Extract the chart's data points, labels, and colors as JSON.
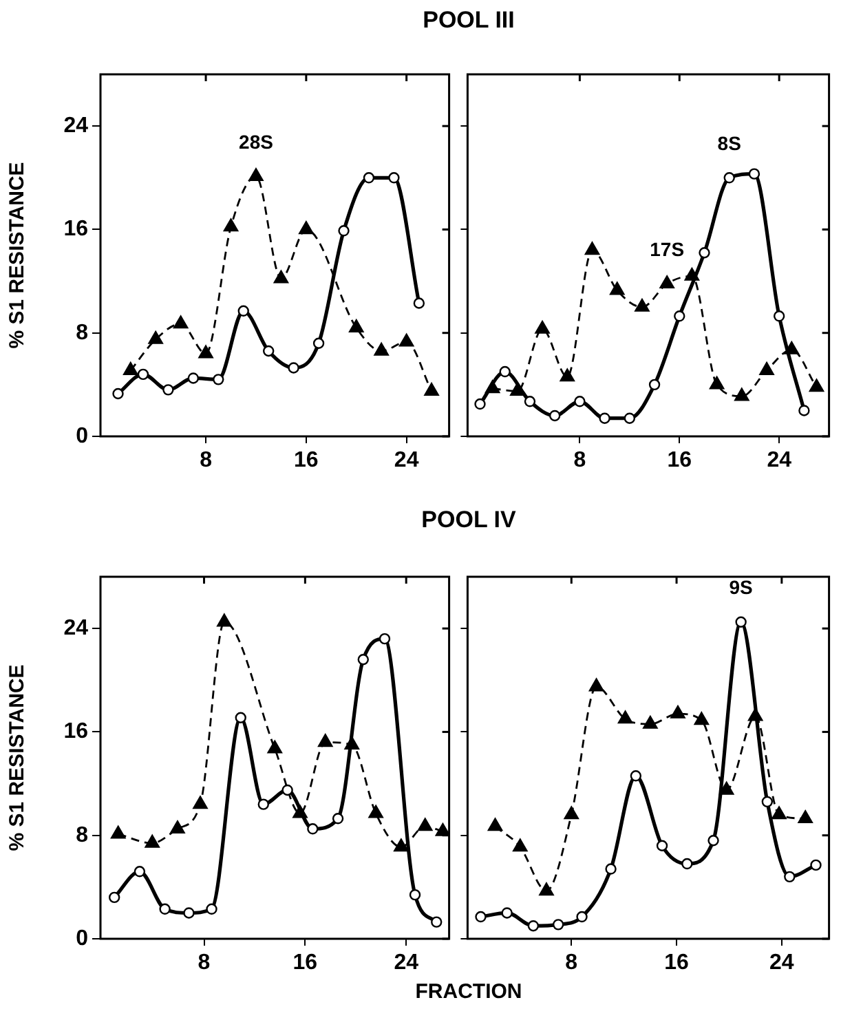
{
  "chart_data": [
    {
      "type": "line",
      "title": "POOL III",
      "ylabel": "% S1 RESISTANCE",
      "xlim": [
        -0.4,
        27.4
      ],
      "ylim": [
        0,
        28
      ],
      "xticks": [
        8,
        16,
        24
      ],
      "yticks": [
        0,
        8,
        16,
        24
      ],
      "grid": false,
      "series": [
        {
          "color": "#000000",
          "marker": "circle",
          "line_style": "solid",
          "x": [
            1,
            3,
            5,
            7,
            9,
            11,
            13,
            15,
            17,
            19,
            21,
            23,
            25
          ],
          "values": [
            3.3,
            4.8,
            3.6,
            4.5,
            4.4,
            9.7,
            6.6,
            5.3,
            7.2,
            15.9,
            20.0,
            20.0,
            10.3
          ]
        },
        {
          "color": "#000000",
          "marker": "triangle",
          "line_style": "dashed",
          "x": [
            2,
            4,
            6,
            8,
            10,
            12,
            14,
            16,
            20,
            22,
            24,
            26
          ],
          "values": [
            5.1,
            7.5,
            8.7,
            6.4,
            16.2,
            20.1,
            12.2,
            16.0,
            8.4,
            6.6,
            7.3,
            3.5
          ]
        }
      ],
      "annotations": [
        {
          "text": "28S",
          "x": 12,
          "y": 20.1
        }
      ]
    },
    {
      "type": "line",
      "xlim": [
        -1,
        28
      ],
      "ylim": [
        0,
        28
      ],
      "xticks": [
        8,
        16,
        24
      ],
      "yticks": [
        0,
        8,
        16,
        24
      ],
      "grid": false,
      "tick_labels": "x",
      "series": [
        {
          "color": "#000000",
          "marker": "circle",
          "line_style": "solid",
          "x": [
            0,
            2,
            4,
            6,
            8,
            10,
            12,
            14,
            16,
            18,
            20,
            22,
            24,
            26
          ],
          "values": [
            2.5,
            5.0,
            2.7,
            1.6,
            2.7,
            1.4,
            1.4,
            4.0,
            9.3,
            14.2,
            20.0,
            20.3,
            9.3,
            2.0
          ]
        },
        {
          "color": "#000000",
          "marker": "triangle",
          "line_style": "dashed",
          "x": [
            1,
            3,
            5,
            7,
            9,
            11,
            13,
            15,
            17,
            19,
            21,
            23,
            25,
            27
          ],
          "values": [
            3.7,
            3.5,
            8.3,
            4.6,
            14.4,
            11.3,
            10.0,
            11.8,
            12.4,
            4.0,
            3.1,
            5.1,
            6.7,
            3.8
          ]
        }
      ],
      "annotations": [
        {
          "text": "8S",
          "x": 20,
          "y": 20.0
        },
        {
          "text": "17S",
          "x": 15,
          "y": 11.8
        }
      ]
    },
    {
      "type": "line",
      "title": "POOL IV",
      "ylabel": "% S1 RESISTANCE",
      "xlabel": "FRACTION",
      "xlim": [
        -0.2,
        27.4
      ],
      "ylim": [
        0,
        28
      ],
      "xticks": [
        8,
        16,
        24
      ],
      "yticks": [
        0,
        8,
        16,
        24
      ],
      "grid": false,
      "series": [
        {
          "color": "#000000",
          "marker": "circle",
          "line_style": "solid",
          "x": [
            0.9,
            2.9,
            4.9,
            6.8,
            8.6,
            10.9,
            12.7,
            14.6,
            16.6,
            18.6,
            20.6,
            22.3,
            24.7,
            26.4
          ],
          "values": [
            3.2,
            5.2,
            2.3,
            2.0,
            2.3,
            17.1,
            10.4,
            11.5,
            8.5,
            9.3,
            21.6,
            23.2,
            3.4,
            1.3
          ]
        },
        {
          "color": "#000000",
          "marker": "triangle",
          "line_style": "dashed",
          "x": [
            1.2,
            3.9,
            5.9,
            7.7,
            9.6,
            13.6,
            15.6,
            17.6,
            19.7,
            21.6,
            23.6,
            25.5,
            26.9
          ],
          "values": [
            8.1,
            7.4,
            8.5,
            10.4,
            24.5,
            14.7,
            9.7,
            15.2,
            15.0,
            9.7,
            7.1,
            8.7,
            8.3
          ]
        }
      ]
    },
    {
      "type": "line",
      "xlim": [
        0.1,
        27.6
      ],
      "ylim": [
        0,
        28
      ],
      "xticks": [
        8,
        16,
        24
      ],
      "yticks": [
        0,
        8,
        16,
        24
      ],
      "grid": false,
      "tick_labels": "x",
      "series": [
        {
          "color": "#000000",
          "marker": "circle",
          "line_style": "solid",
          "x": [
            1.1,
            3.1,
            5.1,
            7.0,
            8.8,
            11.0,
            12.9,
            14.9,
            16.8,
            18.8,
            20.9,
            22.9,
            24.6,
            26.6
          ],
          "values": [
            1.7,
            2.0,
            1.0,
            1.1,
            1.7,
            5.4,
            12.6,
            7.2,
            5.8,
            7.6,
            24.5,
            10.6,
            4.8,
            5.7
          ]
        },
        {
          "color": "#000000",
          "marker": "triangle",
          "line_style": "dashed",
          "x": [
            2.2,
            4.1,
            6.1,
            8.0,
            9.9,
            12.1,
            14.0,
            16.1,
            17.9,
            19.8,
            22.0,
            23.8,
            25.8
          ],
          "values": [
            8.7,
            7.1,
            3.7,
            9.6,
            19.5,
            17.0,
            16.6,
            17.4,
            16.9,
            11.5,
            17.2,
            9.6,
            9.3
          ]
        }
      ],
      "annotations": [
        {
          "text": "9S",
          "x": 20.9,
          "y": 24.5
        }
      ]
    }
  ]
}
